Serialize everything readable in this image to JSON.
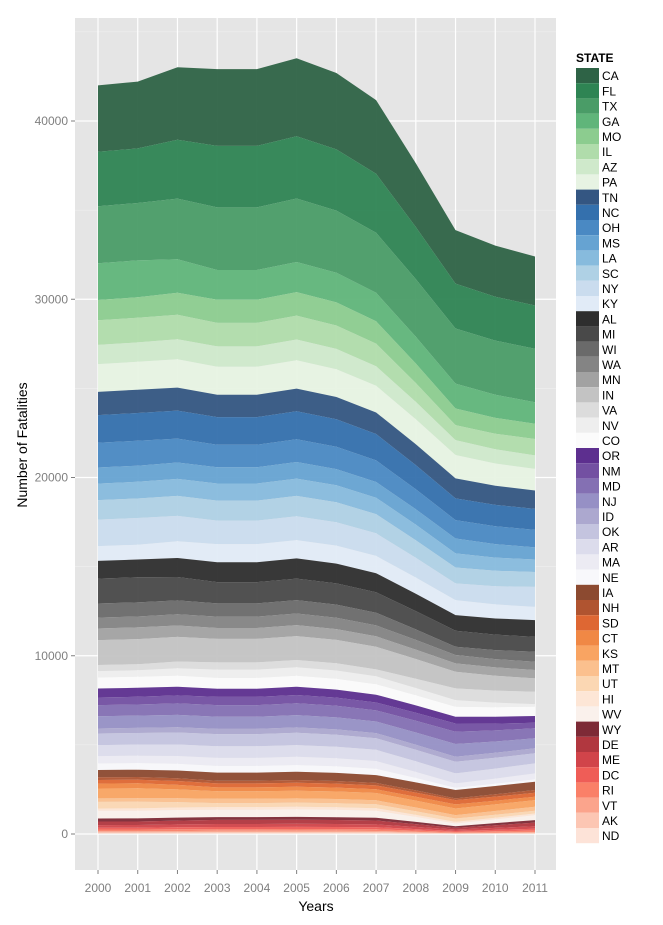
{
  "chart_data": {
    "type": "area",
    "stacked": true,
    "title": "",
    "xlabel": "Years",
    "ylabel": "Number of Fatalities",
    "x": [
      2000,
      2001,
      2002,
      2003,
      2004,
      2005,
      2006,
      2007,
      2008,
      2009,
      2010,
      2011
    ],
    "x_tick_labels": [
      "2000",
      "2001",
      "2002",
      "2003",
      "2004",
      "2005",
      "2006",
      "2007",
      "2008",
      "2009",
      "2010",
      "2011"
    ],
    "ylim": [
      -2000,
      45700
    ],
    "y_ticks": [
      0,
      10000,
      20000,
      30000,
      40000
    ],
    "y_tick_labels": [
      "0",
      "10000",
      "20000",
      "30000",
      "40000"
    ],
    "grid": true,
    "legend": {
      "title": "STATE",
      "position": "right"
    },
    "background_color": "#e5e5e5",
    "series": [
      {
        "name": "CA",
        "color": "#2e6346",
        "values": [
          3730,
          3749,
          4074,
          4309,
          4309,
          4370,
          4287,
          4134,
          3582,
          3000,
          2864,
          2750
        ]
      },
      {
        "name": "FL",
        "color": "#2e8453",
        "values": [
          3050,
          3065,
          3295,
          3451,
          3451,
          3500,
          3434,
          3311,
          2925,
          2520,
          2465,
          2430
        ]
      },
      {
        "name": "TX",
        "color": "#4a9c67",
        "values": [
          3200,
          3216,
          3400,
          3510,
          3510,
          3560,
          3492,
          3368,
          3232,
          3090,
          3033,
          3000
        ]
      },
      {
        "name": "GA",
        "color": "#60b57a",
        "values": [
          2060,
          2070,
          1886,
          1666,
          1666,
          1690,
          1658,
          1599,
          1502,
          1400,
          1300,
          1210
        ]
      },
      {
        "name": "MO",
        "color": "#8ccc8f",
        "values": [
          1140,
          1146,
          1237,
          1302,
          1302,
          1320,
          1295,
          1249,
          1094,
          930,
          886,
          850
        ]
      },
      {
        "name": "IL",
        "color": "#b0dcab",
        "values": [
          1380,
          1387,
          1368,
          1321,
          1321,
          1340,
          1315,
          1268,
          1059,
          840,
          876,
          920
        ]
      },
      {
        "name": "AZ",
        "color": "#cfe9cb",
        "values": [
          1080,
          1085,
          1127,
          1144,
          1144,
          1160,
          1138,
          1097,
          972,
          840,
          797,
          760
        ]
      },
      {
        "name": "PA",
        "color": "#e7f3e3",
        "values": [
          1560,
          1568,
          1584,
          1568,
          1568,
          1590,
          1560,
          1504,
          1409,
          1310,
          1255,
          1210
        ]
      },
      {
        "name": "TN",
        "color": "#345682",
        "values": [
          1300,
          1307,
          1293,
          1252,
          1252,
          1270,
          1246,
          1201,
          1162,
          1120,
          1071,
          1030
        ]
      },
      {
        "name": "NC",
        "color": "#3470ad",
        "values": [
          1550,
          1558,
          1569,
          1548,
          1548,
          1570,
          1540,
          1485,
          1356,
          1220,
          1195,
          1180
        ]
      },
      {
        "name": "OH",
        "color": "#4a89c3",
        "values": [
          1390,
          1397,
          1343,
          1262,
          1262,
          1280,
          1256,
          1211,
          1123,
          1030,
          1001,
          980
        ]
      },
      {
        "name": "MS",
        "color": "#66a3d2",
        "values": [
          900,
          905,
          920,
          917,
          917,
          930,
          912,
          880,
          860,
          840,
          757,
          680
        ]
      },
      {
        "name": "LA",
        "color": "#87bbdd",
        "values": [
          930,
          935,
          956,
          956,
          956,
          970,
          952,
          918,
          875,
          790,
          742,
          700
        ]
      },
      {
        "name": "SC",
        "color": "#afd1e5",
        "values": [
          1090,
          1095,
          1122,
          1124,
          1124,
          1140,
          1118,
          1078,
          987,
          890,
          862,
          840
        ]
      },
      {
        "name": "NY",
        "color": "#cadcee",
        "values": [
          1490,
          1497,
          1424,
          1321,
          1321,
          1340,
          1315,
          1268,
          1108,
          940,
          1026,
          1120
        ]
      },
      {
        "name": "KY",
        "color": "#e1ebf7",
        "values": [
          830,
          834,
          936,
          1016,
          1016,
          1030,
          1010,
          974,
          909,
          840,
          787,
          740
        ]
      },
      {
        "name": "AL",
        "color": "#2e2e2e",
        "values": [
          990,
          995,
          1066,
          1114,
          1114,
          1130,
          1109,
          1069,
          977,
          880,
          906,
          940
        ]
      },
      {
        "name": "MI",
        "color": "#494949",
        "values": [
          1400,
          1407,
          1313,
          1193,
          1193,
          1210,
          1187,
          1145,
          1025,
          900,
          866,
          840
        ]
      },
      {
        "name": "WI",
        "color": "#6a6a6a",
        "values": [
          790,
          794,
          775,
          740,
          740,
          750,
          736,
          710,
          588,
          460,
          508,
          560
        ]
      },
      {
        "name": "WA",
        "color": "#848484",
        "values": [
          610,
          613,
          634,
          641,
          641,
          650,
          638,
          615,
          544,
          470,
          463,
          460
        ]
      },
      {
        "name": "MN",
        "color": "#a2a2a2",
        "values": [
          650,
          653,
          639,
          611,
          611,
          620,
          608,
          587,
          530,
          470,
          468,
          470
        ]
      },
      {
        "name": "IN",
        "color": "#c3c3c3",
        "values": [
          1400,
          1407,
          1378,
          1321,
          1321,
          1340,
          1315,
          1268,
          1103,
          930,
          837,
          750
        ]
      },
      {
        "name": "VA",
        "color": "#dcdcdc",
        "values": [
          340,
          342,
          377,
          404,
          404,
          410,
          402,
          388,
          520,
          660,
          672,
          690
        ]
      },
      {
        "name": "NV",
        "color": "#eeeeee",
        "values": [
          360,
          362,
          417,
          463,
          463,
          470,
          461,
          445,
          408,
          370,
          259,
          150
        ]
      },
      {
        "name": "CO",
        "color": "#fbfbfb",
        "values": [
          620,
          623,
          624,
          611,
          611,
          620,
          608,
          587,
          573,
          560,
          538,
          520
        ]
      },
      {
        "name": "OR",
        "color": "#5d2f8f",
        "values": [
          500,
          503,
          483,
          454,
          454,
          460,
          451,
          435,
          408,
          380,
          378,
          380
        ]
      },
      {
        "name": "NM",
        "color": "#7350a2",
        "values": [
          430,
          432,
          453,
          463,
          463,
          470,
          461,
          445,
          452,
          460,
          383,
          310
        ]
      },
      {
        "name": "MD",
        "color": "#8470b3",
        "values": [
          620,
          623,
          644,
          651,
          651,
          660,
          647,
          624,
          656,
          690,
          622,
          560
        ]
      },
      {
        "name": "NJ",
        "color": "#9690c5",
        "values": [
          690,
          693,
          694,
          680,
          680,
          690,
          677,
          653,
          685,
          720,
          637,
          560
        ]
      },
      {
        "name": "ID",
        "color": "#aca8cf",
        "values": [
          280,
          281,
          292,
          296,
          296,
          300,
          294,
          284,
          282,
          280,
          279,
          280
        ]
      },
      {
        "name": "OK",
        "color": "#c4c4df",
        "values": [
          650,
          653,
          674,
          680,
          680,
          690,
          677,
          653,
          651,
          650,
          608,
          570
        ]
      },
      {
        "name": "AR",
        "color": "#dcdcec",
        "values": [
          620,
          623,
          644,
          651,
          651,
          660,
          647,
          624,
          593,
          560,
          558,
          560
        ]
      },
      {
        "name": "MA",
        "color": "#ecebf3",
        "values": [
          410,
          412,
          438,
          454,
          454,
          460,
          451,
          435,
          340,
          240,
          284,
          330
        ]
      },
      {
        "name": "NE",
        "color": "#f8f8fb",
        "values": [
          370,
          372,
          377,
          375,
          375,
          380,
          373,
          359,
          248,
          130,
          134,
          140
        ]
      },
      {
        "name": "IA",
        "color": "#8c4a30",
        "values": [
          410,
          412,
          438,
          454,
          454,
          460,
          451,
          435,
          452,
          470,
          463,
          460
        ]
      },
      {
        "name": "NH",
        "color": "#b05430",
        "values": [
          150,
          151,
          151,
          148,
          148,
          150,
          147,
          142,
          122,
          100,
          129,
          160
        ]
      },
      {
        "name": "SD",
        "color": "#de6733",
        "values": [
          200,
          201,
          216,
          227,
          227,
          230,
          226,
          218,
          228,
          240,
          229,
          220
        ]
      },
      {
        "name": "CT",
        "color": "#f08845",
        "values": [
          280,
          281,
          252,
          217,
          217,
          220,
          216,
          208,
          219,
          230,
          209,
          190
        ]
      },
      {
        "name": "KS",
        "color": "#f9a462",
        "values": [
          550,
          553,
          493,
          424,
          424,
          430,
          422,
          407,
          389,
          370,
          369,
          370
        ]
      },
      {
        "name": "MT",
        "color": "#fbc08e",
        "values": [
          200,
          201,
          221,
          237,
          237,
          240,
          235,
          227,
          209,
          190,
          209,
          230
        ]
      },
      {
        "name": "UT",
        "color": "#fbd7b3",
        "values": [
          370,
          372,
          302,
          227,
          227,
          230,
          226,
          218,
          204,
          190,
          169,
          150
        ]
      },
      {
        "name": "HI",
        "color": "#fde6d6",
        "values": [
          130,
          131,
          141,
          148,
          148,
          150,
          147,
          142,
          117,
          90,
          90,
          90
        ]
      },
      {
        "name": "WV",
        "color": "#faf1ec",
        "values": [
          430,
          432,
          427,
          414,
          414,
          420,
          412,
          397,
          277,
          150,
          214,
          280
        ]
      },
      {
        "name": "WY",
        "color": "#7d2a36",
        "values": [
          170,
          171,
          166,
          158,
          158,
          160,
          157,
          151,
          126,
          100,
          120,
          140
        ]
      },
      {
        "name": "DE",
        "color": "#b1373f",
        "values": [
          200,
          201,
          216,
          227,
          227,
          230,
          226,
          218,
          156,
          90,
          145,
          200
        ]
      },
      {
        "name": "ME",
        "color": "#d1444a",
        "values": [
          150,
          151,
          161,
          168,
          168,
          170,
          167,
          161,
          121,
          80,
          115,
          150
        ]
      },
      {
        "name": "DC",
        "color": "#ef5d57",
        "values": [
          100,
          101,
          111,
          118,
          118,
          120,
          118,
          114,
          87,
          60,
          80,
          100
        ]
      },
      {
        "name": "RI",
        "color": "#fa8068",
        "values": [
          100,
          101,
          101,
          99,
          99,
          100,
          98,
          95,
          73,
          50,
          65,
          80
        ]
      },
      {
        "name": "VT",
        "color": "#fba48c",
        "values": [
          60,
          60,
          65,
          69,
          69,
          70,
          69,
          66,
          49,
          30,
          40,
          50
        ]
      },
      {
        "name": "AK",
        "color": "#fcc6b3",
        "values": [
          50,
          50,
          55,
          59,
          59,
          60,
          59,
          57,
          39,
          20,
          30,
          40
        ]
      },
      {
        "name": "ND",
        "color": "#fde3d8",
        "values": [
          40,
          40,
          45,
          49,
          49,
          50,
          49,
          47,
          29,
          10,
          15,
          20
        ]
      }
    ]
  }
}
